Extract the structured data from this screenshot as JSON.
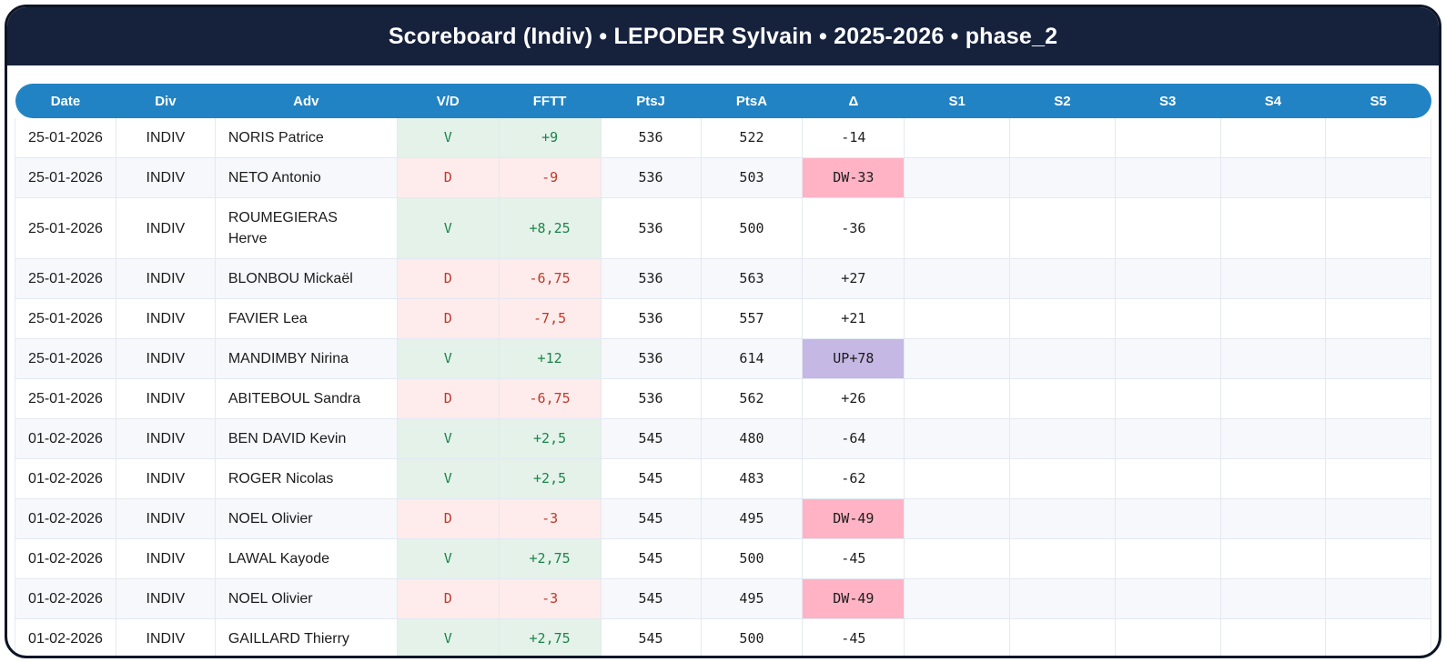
{
  "title": "Scoreboard (Indiv) • LEPODER Sylvain • 2025-2026 • phase_2",
  "colors": {
    "title_bar_bg": "#16213c",
    "column_header_bg": "#2183c4",
    "win_text": "#1e8449",
    "win_bg": "#e4f2ea",
    "loss_text": "#c0392b",
    "loss_bg": "#fdeceb",
    "delta_down_bg": "#ffb3c4",
    "delta_up_bg": "#c5b8e4",
    "row_alt_bg": "#f6f8fc"
  },
  "table": {
    "columns": [
      "Date",
      "Div",
      "Adv",
      "V/D",
      "FFTT",
      "PtsJ",
      "PtsA",
      "Δ",
      "S1",
      "S2",
      "S3",
      "S4",
      "S5"
    ],
    "rows": [
      {
        "date": "25-01-2026",
        "div": "INDIV",
        "adv": "NORIS Patrice",
        "vd": "V",
        "fftt": "+9",
        "ptsj": "536",
        "ptsa": "522",
        "delta": "-14",
        "delta_badge": "none",
        "sets": [
          "",
          "",
          "",
          "",
          ""
        ]
      },
      {
        "date": "25-01-2026",
        "div": "INDIV",
        "adv": "NETO Antonio",
        "vd": "D",
        "fftt": "-9",
        "ptsj": "536",
        "ptsa": "503",
        "delta": "DW-33",
        "delta_badge": "down",
        "sets": [
          "",
          "",
          "",
          "",
          ""
        ]
      },
      {
        "date": "25-01-2026",
        "div": "INDIV",
        "adv": "ROUMEGIERAS Herve",
        "vd": "V",
        "fftt": "+8,25",
        "ptsj": "536",
        "ptsa": "500",
        "delta": "-36",
        "delta_badge": "none",
        "sets": [
          "",
          "",
          "",
          "",
          ""
        ]
      },
      {
        "date": "25-01-2026",
        "div": "INDIV",
        "adv": "BLONBOU Mickaël",
        "vd": "D",
        "fftt": "-6,75",
        "ptsj": "536",
        "ptsa": "563",
        "delta": "+27",
        "delta_badge": "none",
        "sets": [
          "",
          "",
          "",
          "",
          ""
        ]
      },
      {
        "date": "25-01-2026",
        "div": "INDIV",
        "adv": "FAVIER Lea",
        "vd": "D",
        "fftt": "-7,5",
        "ptsj": "536",
        "ptsa": "557",
        "delta": "+21",
        "delta_badge": "none",
        "sets": [
          "",
          "",
          "",
          "",
          ""
        ]
      },
      {
        "date": "25-01-2026",
        "div": "INDIV",
        "adv": "MANDIMBY Nirina",
        "vd": "V",
        "fftt": "+12",
        "ptsj": "536",
        "ptsa": "614",
        "delta": "UP+78",
        "delta_badge": "up",
        "sets": [
          "",
          "",
          "",
          "",
          ""
        ]
      },
      {
        "date": "25-01-2026",
        "div": "INDIV",
        "adv": "ABITEBOUL Sandra",
        "vd": "D",
        "fftt": "-6,75",
        "ptsj": "536",
        "ptsa": "562",
        "delta": "+26",
        "delta_badge": "none",
        "sets": [
          "",
          "",
          "",
          "",
          ""
        ]
      },
      {
        "date": "01-02-2026",
        "div": "INDIV",
        "adv": "BEN DAVID Kevin",
        "vd": "V",
        "fftt": "+2,5",
        "ptsj": "545",
        "ptsa": "480",
        "delta": "-64",
        "delta_badge": "none",
        "sets": [
          "",
          "",
          "",
          "",
          ""
        ]
      },
      {
        "date": "01-02-2026",
        "div": "INDIV",
        "adv": "ROGER Nicolas",
        "vd": "V",
        "fftt": "+2,5",
        "ptsj": "545",
        "ptsa": "483",
        "delta": "-62",
        "delta_badge": "none",
        "sets": [
          "",
          "",
          "",
          "",
          ""
        ]
      },
      {
        "date": "01-02-2026",
        "div": "INDIV",
        "adv": "NOEL Olivier",
        "vd": "D",
        "fftt": "-3",
        "ptsj": "545",
        "ptsa": "495",
        "delta": "DW-49",
        "delta_badge": "down",
        "sets": [
          "",
          "",
          "",
          "",
          ""
        ]
      },
      {
        "date": "01-02-2026",
        "div": "INDIV",
        "adv": "LAWAL Kayode",
        "vd": "V",
        "fftt": "+2,75",
        "ptsj": "545",
        "ptsa": "500",
        "delta": "-45",
        "delta_badge": "none",
        "sets": [
          "",
          "",
          "",
          "",
          ""
        ]
      },
      {
        "date": "01-02-2026",
        "div": "INDIV",
        "adv": "NOEL Olivier",
        "vd": "D",
        "fftt": "-3",
        "ptsj": "545",
        "ptsa": "495",
        "delta": "DW-49",
        "delta_badge": "down",
        "sets": [
          "",
          "",
          "",
          "",
          ""
        ]
      },
      {
        "date": "01-02-2026",
        "div": "INDIV",
        "adv": "GAILLARD Thierry",
        "vd": "V",
        "fftt": "+2,75",
        "ptsj": "545",
        "ptsa": "500",
        "delta": "-45",
        "delta_badge": "none",
        "sets": [
          "",
          "",
          "",
          "",
          ""
        ]
      }
    ]
  }
}
